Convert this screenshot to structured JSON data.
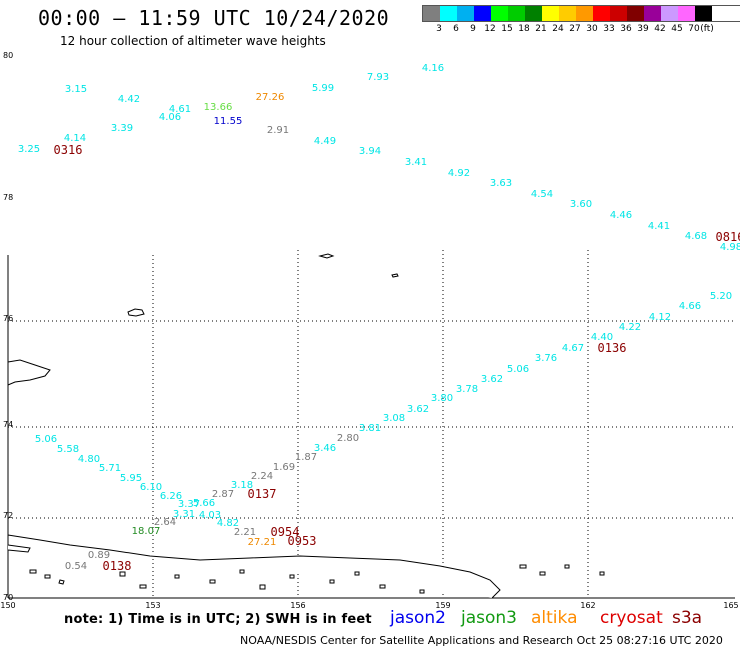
{
  "header": {
    "title": "00:00 – 11:59 UTC 10/24/2020",
    "subtitle": "12 hour collection of altimeter wave heights"
  },
  "legend": {
    "colors": [
      "#7f7f7f",
      "#00ffff",
      "#00b0f0",
      "#0000ff",
      "#00ff00",
      "#00cc00",
      "#008000",
      "#ffff00",
      "#ffcc00",
      "#ff9900",
      "#ff0000",
      "#cc0000",
      "#800000",
      "#990099",
      "#cc99ff",
      "#ff66ff",
      "#000000"
    ],
    "labels": [
      "3",
      "6",
      "9",
      "12",
      "15",
      "18",
      "21",
      "24",
      "27",
      "30",
      "33",
      "36",
      "39",
      "42",
      "45",
      "70",
      "(ft)"
    ]
  },
  "axes": {
    "lat_labels": [
      "80",
      "78",
      "76",
      "74",
      "72",
      "70"
    ],
    "lon_labels": [
      "150",
      "153",
      "156",
      "159",
      "162",
      "165"
    ]
  },
  "observations": [
    {
      "v": "3.15",
      "c": "cyan"
    },
    {
      "v": "4.42",
      "c": "cyan"
    },
    {
      "v": "4.61",
      "c": "cyan"
    },
    {
      "v": "4.06",
      "c": "cyan"
    },
    {
      "v": "13.66",
      "c": "lgreen"
    },
    {
      "v": "11.55",
      "c": "blue"
    },
    {
      "v": "27.26",
      "c": "orange"
    },
    {
      "v": "2.91",
      "c": "gray"
    },
    {
      "v": "5.99",
      "c": "cyan"
    },
    {
      "v": "7.93",
      "c": "cyan"
    },
    {
      "v": "4.16",
      "c": "cyan"
    },
    {
      "v": "3.25",
      "c": "cyan"
    },
    {
      "v": "4.14",
      "c": "cyan"
    },
    {
      "v": "3.39",
      "c": "cyan"
    },
    {
      "v": "4.49",
      "c": "cyan"
    },
    {
      "v": "3.94",
      "c": "cyan"
    },
    {
      "v": "3.41",
      "c": "cyan"
    },
    {
      "v": "4.92",
      "c": "cyan"
    },
    {
      "v": "3.63",
      "c": "cyan"
    },
    {
      "v": "4.54",
      "c": "cyan"
    },
    {
      "v": "3.60",
      "c": "cyan"
    },
    {
      "v": "4.46",
      "c": "cyan"
    },
    {
      "v": "4.41",
      "c": "cyan"
    },
    {
      "v": "4.68",
      "c": "cyan"
    },
    {
      "v": "4.98",
      "c": "cyan"
    },
    {
      "v": "5.20",
      "c": "cyan"
    },
    {
      "v": "4.66",
      "c": "cyan"
    },
    {
      "v": "4.12",
      "c": "cyan"
    },
    {
      "v": "4.22",
      "c": "cyan"
    },
    {
      "v": "4.40",
      "c": "cyan"
    },
    {
      "v": "4.67",
      "c": "cyan"
    },
    {
      "v": "3.76",
      "c": "cyan"
    },
    {
      "v": "5.06",
      "c": "cyan"
    },
    {
      "v": "3.62",
      "c": "cyan"
    },
    {
      "v": "3.78",
      "c": "cyan"
    },
    {
      "v": "3.80",
      "c": "cyan"
    },
    {
      "v": "3.62",
      "c": "cyan"
    },
    {
      "v": "3.08",
      "c": "cyan"
    },
    {
      "v": "3.81",
      "c": "cyan"
    },
    {
      "v": "2.80",
      "c": "gray"
    },
    {
      "v": "3.46",
      "c": "cyan"
    },
    {
      "v": "1.87",
      "c": "gray"
    },
    {
      "v": "1.69",
      "c": "gray"
    },
    {
      "v": "2.24",
      "c": "gray"
    },
    {
      "v": "3.18",
      "c": "cyan"
    },
    {
      "v": "2.87",
      "c": "gray"
    },
    {
      "v": "5.06",
      "c": "cyan"
    },
    {
      "v": "5.58",
      "c": "cyan"
    },
    {
      "v": "4.80",
      "c": "cyan"
    },
    {
      "v": "5.71",
      "c": "cyan"
    },
    {
      "v": "5.95",
      "c": "cyan"
    },
    {
      "v": "6.10",
      "c": "cyan"
    },
    {
      "v": "6.26",
      "c": "cyan"
    },
    {
      "v": "5.66",
      "c": "cyan"
    },
    {
      "v": "3.37",
      "c": "cyan"
    },
    {
      "v": "3.31",
      "c": "cyan"
    },
    {
      "v": "4.03",
      "c": "cyan"
    },
    {
      "v": "4.82",
      "c": "cyan"
    },
    {
      "v": "2.64",
      "c": "gray"
    },
    {
      "v": "18.07",
      "c": "dgreen"
    },
    {
      "v": "2.21",
      "c": "gray"
    },
    {
      "v": "27.21",
      "c": "orange"
    },
    {
      "v": "0.89",
      "c": "gray"
    },
    {
      "v": "0.54",
      "c": "gray"
    }
  ],
  "pass_times": [
    "0316",
    "0816",
    "0136",
    "0137",
    "0954",
    "0953",
    "0138"
  ],
  "footer": {
    "note": "note:  1) Time is in UTC;  2) SWH is in feet",
    "satellites": [
      "jason2",
      "jason3",
      "altika",
      "cryosat",
      "s3a"
    ],
    "credit": "NOAA/NESDIS Center for Satellite Applications and Research    Oct 25 08:27:16 UTC 2020"
  }
}
